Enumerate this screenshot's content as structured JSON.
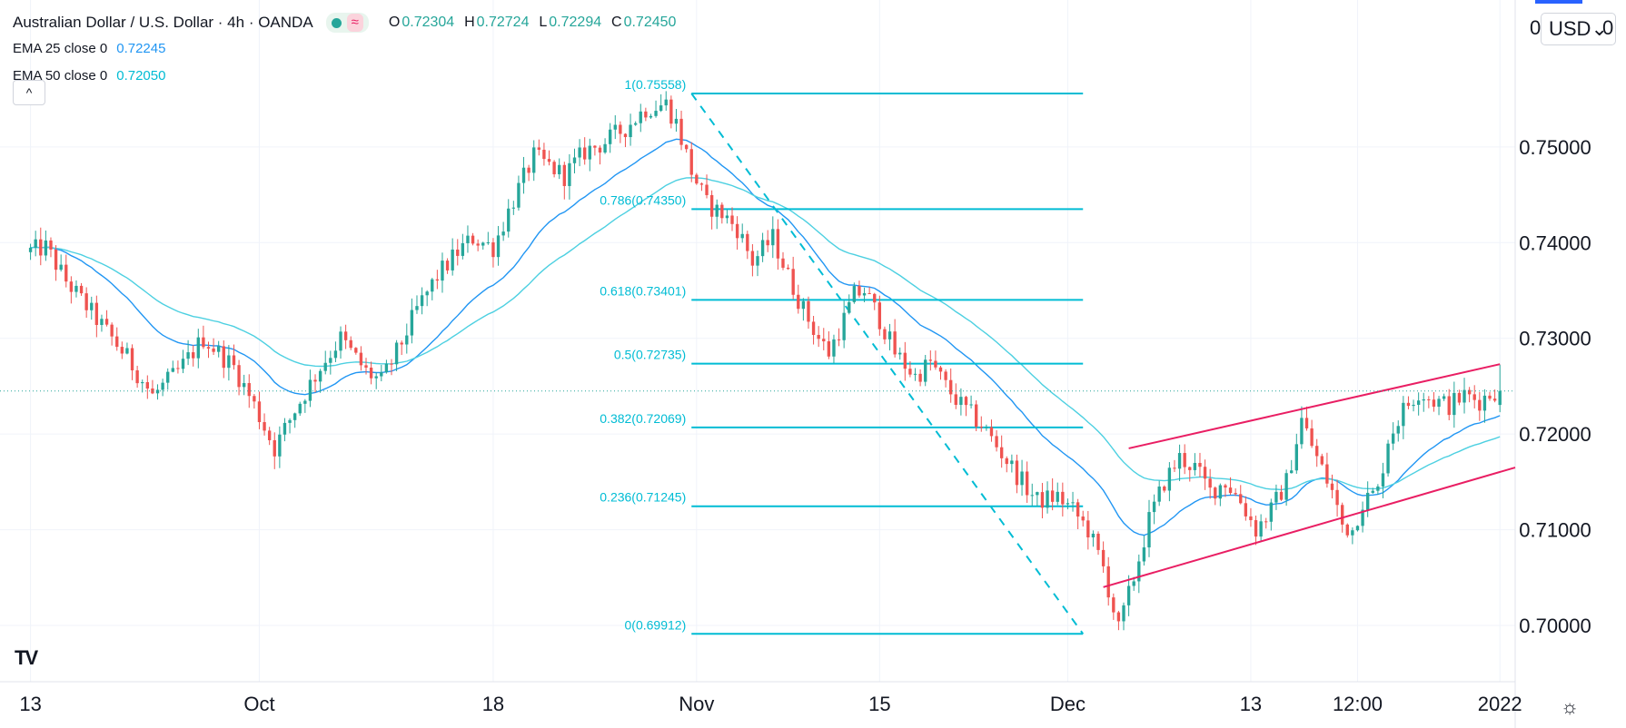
{
  "header": {
    "title": "Australian Dollar / U.S. Dollar · 4h · OANDA",
    "ohlc": [
      {
        "k": "O",
        "v": "0.72304"
      },
      {
        "k": "H",
        "v": "0.72724"
      },
      {
        "k": "L",
        "v": "0.72294"
      },
      {
        "k": "C",
        "v": "0.72450"
      }
    ],
    "wave_icon": "≈"
  },
  "indicators": [
    {
      "label": "EMA 25 close 0",
      "value": "0.72245",
      "color": "#2196f3"
    },
    {
      "label": "EMA 50 close 0",
      "value": "0.72050",
      "color": "#00bcd4"
    }
  ],
  "controls": {
    "collapse_icon": "chevron-up-icon",
    "collapse_glyph": "^",
    "currency_label": "USD⌄",
    "currency_left": "0",
    "currency_right": "0",
    "settings_glyph": "☼",
    "logo_text": "TV"
  },
  "chart_data": {
    "type": "candlestick",
    "title": "Australian Dollar / U.S. Dollar 4h OANDA",
    "ylim": [
      0.69412,
      0.76535
    ],
    "y_ticks": [
      "0.75000",
      "0.74000",
      "0.73000",
      "0.72000",
      "0.71000",
      "0.70000"
    ],
    "y_tick_values": [
      0.75,
      0.74,
      0.73,
      0.72,
      0.71,
      0.7
    ],
    "x_ticks": [
      "13",
      "Oct",
      "18",
      "Nov",
      "15",
      "Dec",
      "13",
      "12:00",
      "2022"
    ],
    "x_tick_values": [
      0,
      45,
      91,
      131,
      167,
      204,
      240,
      261,
      289
    ],
    "x_range": [
      -6,
      292
    ],
    "current_price": 0.7245,
    "colors": {
      "up": "#26a69a",
      "down": "#ef5350",
      "ema25": "#2196f3",
      "ema50": "#4dd0e1",
      "fib": "#00bcd4",
      "channel": "#e91e63"
    },
    "path_anchors": [
      [
        0,
        0.739
      ],
      [
        4,
        0.7395
      ],
      [
        8,
        0.736
      ],
      [
        14,
        0.732
      ],
      [
        20,
        0.728
      ],
      [
        25,
        0.724
      ],
      [
        30,
        0.7265
      ],
      [
        35,
        0.73
      ],
      [
        41,
        0.727
      ],
      [
        45,
        0.723
      ],
      [
        49,
        0.7185
      ],
      [
        53,
        0.7225
      ],
      [
        58,
        0.727
      ],
      [
        62,
        0.73
      ],
      [
        67,
        0.7265
      ],
      [
        70,
        0.7255
      ],
      [
        73,
        0.7285
      ],
      [
        77,
        0.733
      ],
      [
        81,
        0.7365
      ],
      [
        85,
        0.739
      ],
      [
        88,
        0.7405
      ],
      [
        92,
        0.7395
      ],
      [
        96,
        0.7445
      ],
      [
        100,
        0.749
      ],
      [
        103,
        0.748
      ],
      [
        106,
        0.747
      ],
      [
        110,
        0.7495
      ],
      [
        114,
        0.7505
      ],
      [
        118,
        0.752
      ],
      [
        122,
        0.754
      ],
      [
        126,
        0.7545
      ],
      [
        128,
        0.7525
      ],
      [
        131,
        0.7475
      ],
      [
        134,
        0.744
      ],
      [
        137,
        0.743
      ],
      [
        140,
        0.7415
      ],
      [
        143,
        0.738
      ],
      [
        147,
        0.7405
      ],
      [
        150,
        0.7365
      ],
      [
        153,
        0.733
      ],
      [
        156,
        0.73
      ],
      [
        158,
        0.7285
      ],
      [
        161,
        0.732
      ],
      [
        163,
        0.7345
      ],
      [
        165,
        0.735
      ],
      [
        168,
        0.732
      ],
      [
        171,
        0.7285
      ],
      [
        175,
        0.726
      ],
      [
        178,
        0.7275
      ],
      [
        181,
        0.725
      ],
      [
        184,
        0.723
      ],
      [
        188,
        0.721
      ],
      [
        192,
        0.718
      ],
      [
        196,
        0.715
      ],
      [
        199,
        0.713
      ],
      [
        203,
        0.7135
      ],
      [
        206,
        0.712
      ],
      [
        209,
        0.71
      ],
      [
        212,
        0.706
      ],
      [
        215,
        0.6995
      ],
      [
        218,
        0.705
      ],
      [
        221,
        0.711
      ],
      [
        224,
        0.715
      ],
      [
        227,
        0.7175
      ],
      [
        230,
        0.7165
      ],
      [
        233,
        0.714
      ],
      [
        236,
        0.715
      ],
      [
        239,
        0.713
      ],
      [
        242,
        0.71
      ],
      [
        245,
        0.712
      ],
      [
        248,
        0.715
      ],
      [
        251,
        0.7215
      ],
      [
        254,
        0.7175
      ],
      [
        257,
        0.714
      ],
      [
        259,
        0.7105
      ],
      [
        261,
        0.71
      ],
      [
        263,
        0.713
      ],
      [
        266,
        0.714
      ],
      [
        268,
        0.7195
      ],
      [
        271,
        0.7225
      ],
      [
        274,
        0.7245
      ],
      [
        277,
        0.7235
      ],
      [
        280,
        0.723
      ],
      [
        283,
        0.724
      ],
      [
        286,
        0.7235
      ],
      [
        289,
        0.7245
      ]
    ],
    "fib_levels": [
      {
        "label": "1(0.75558)",
        "value": 0.75558
      },
      {
        "label": "0.786(0.74350)",
        "value": 0.7435
      },
      {
        "label": "0.618(0.73401)",
        "value": 0.73401
      },
      {
        "label": "0.5(0.72735)",
        "value": 0.72735
      },
      {
        "label": "0.382(0.72069)",
        "value": 0.72069
      },
      {
        "label": "0.236(0.71245)",
        "value": 0.71245
      },
      {
        "label": "0(0.69912)",
        "value": 0.69912
      }
    ],
    "fib_x_range": [
      130,
      207
    ],
    "fib_trend": [
      [
        130,
        0.75558
      ],
      [
        207,
        0.69912
      ]
    ],
    "channel": {
      "upper": [
        [
          216,
          0.7185
        ],
        [
          289,
          0.7273
        ]
      ],
      "lower": [
        [
          211,
          0.704
        ],
        [
          292,
          0.7165
        ]
      ]
    }
  }
}
